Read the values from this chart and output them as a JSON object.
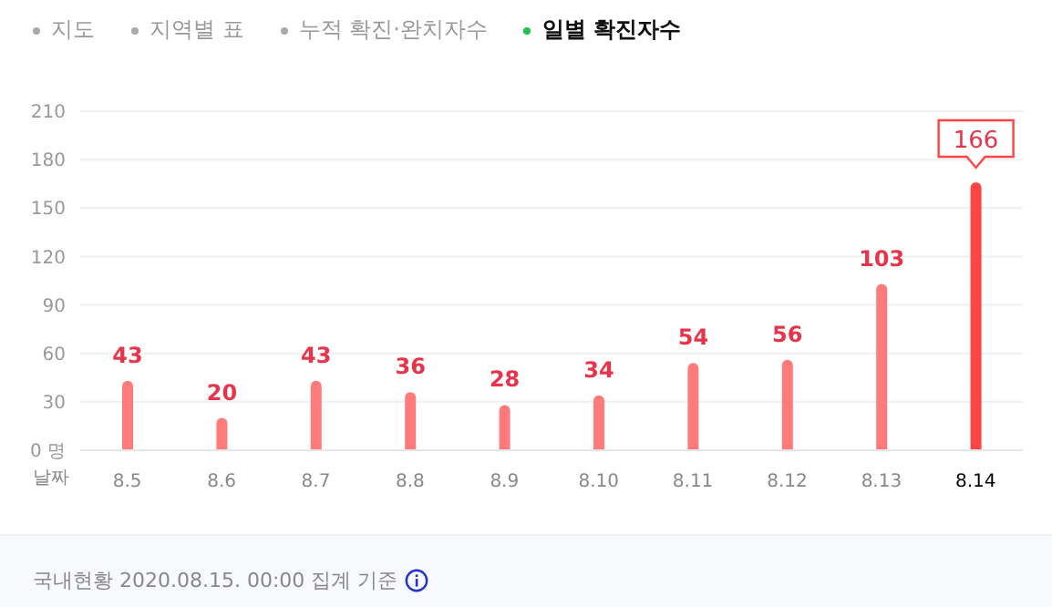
{
  "chart_data": {
    "type": "bar",
    "xlabel": "날짜",
    "categories": [
      "8.5",
      "8.6",
      "8.7",
      "8.8",
      "8.9",
      "8.10",
      "8.11",
      "8.12",
      "8.13",
      "8.14"
    ],
    "values": [
      43,
      20,
      43,
      36,
      28,
      34,
      54,
      56,
      103,
      166
    ],
    "colors": [
      "#ff7b7b",
      "#ff7b7b",
      "#ff7b7b",
      "#ff7b7b",
      "#ff7b7b",
      "#ff7b7b",
      "#ff7b7b",
      "#ff7b7b",
      "#ff7b7b",
      "#ff4444"
    ],
    "ylim": [
      0,
      210
    ],
    "yticks": [
      {
        "value": 0,
        "label": "0 명"
      },
      30,
      60,
      90,
      120,
      150,
      180,
      210
    ],
    "grid": "y",
    "data_labels": true,
    "legend": false,
    "annotations": [
      "지도",
      "지역별 표",
      "누적 확진·완치자수",
      "일별 확진자수",
      "국내현황 2020.08.15. 00:00 집계 기준"
    ]
  }
}
